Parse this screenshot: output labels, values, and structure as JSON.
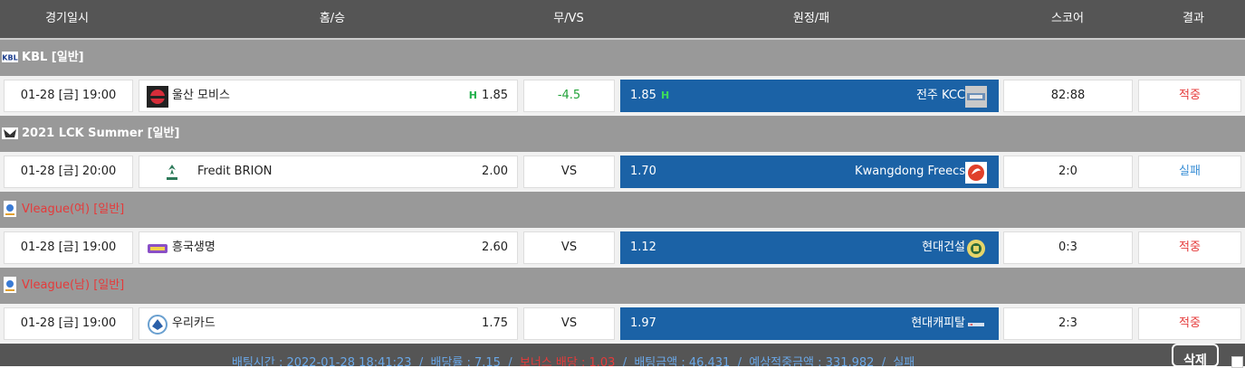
{
  "header": {
    "date": "경기일시",
    "home": "홈/승",
    "draw": "무/VS",
    "away": "원정/패",
    "score": "스코어",
    "result": "결과"
  },
  "groups": [
    {
      "league": "KBL [일반]",
      "league_style": "white",
      "match": {
        "date": "01-28 [금] 19:00",
        "home_team": "울산 모비스",
        "home_odds": "1.85",
        "home_mark": "H",
        "mid": "-4.5",
        "away_odds": "1.85",
        "away_mark": "H",
        "away_team": "전주 KCC",
        "score": "82:88",
        "result": "적중"
      }
    },
    {
      "league": "2021 LCK Summer [일반]",
      "league_style": "white",
      "match": {
        "date": "01-28 [금] 20:00",
        "home_team": "Fredit BRION",
        "home_odds": "2.00",
        "mid": "VS",
        "away_odds": "1.70",
        "away_team": "Kwangdong Freecs",
        "score": "2:0",
        "result": "실패"
      }
    },
    {
      "league": "Vleague(여) [일반]",
      "league_style": "red",
      "match": {
        "date": "01-28 [금] 19:00",
        "home_team": "흥국생명",
        "home_odds": "2.60",
        "mid": "VS",
        "away_odds": "1.12",
        "away_team": "현대건설",
        "score": "0:3",
        "result": "적중"
      }
    },
    {
      "league": "Vleague(남) [일반]",
      "league_style": "red",
      "match": {
        "date": "01-28 [금] 19:00",
        "home_team": "우리카드",
        "home_odds": "1.75",
        "mid": "VS",
        "away_odds": "1.97",
        "away_team": "현대캐피탈",
        "score": "2:3",
        "result": "적중"
      }
    }
  ],
  "footer": {
    "bet_time": "배팅시간 : 2022-01-28 18:41:23",
    "sep": "/",
    "odds": "배당률 : 7.15",
    "bonus": "보너스 배당 : 1.03",
    "amount": "배팅금액 : 46,431",
    "expected": "예상적중금액 : 331,982",
    "status": "실패",
    "delete_label": "삭제"
  },
  "colors": {
    "win": "#e53a3a",
    "lose": "#3a8fd6",
    "away_bg": "#1b62a6",
    "league_bg": "#999999"
  }
}
